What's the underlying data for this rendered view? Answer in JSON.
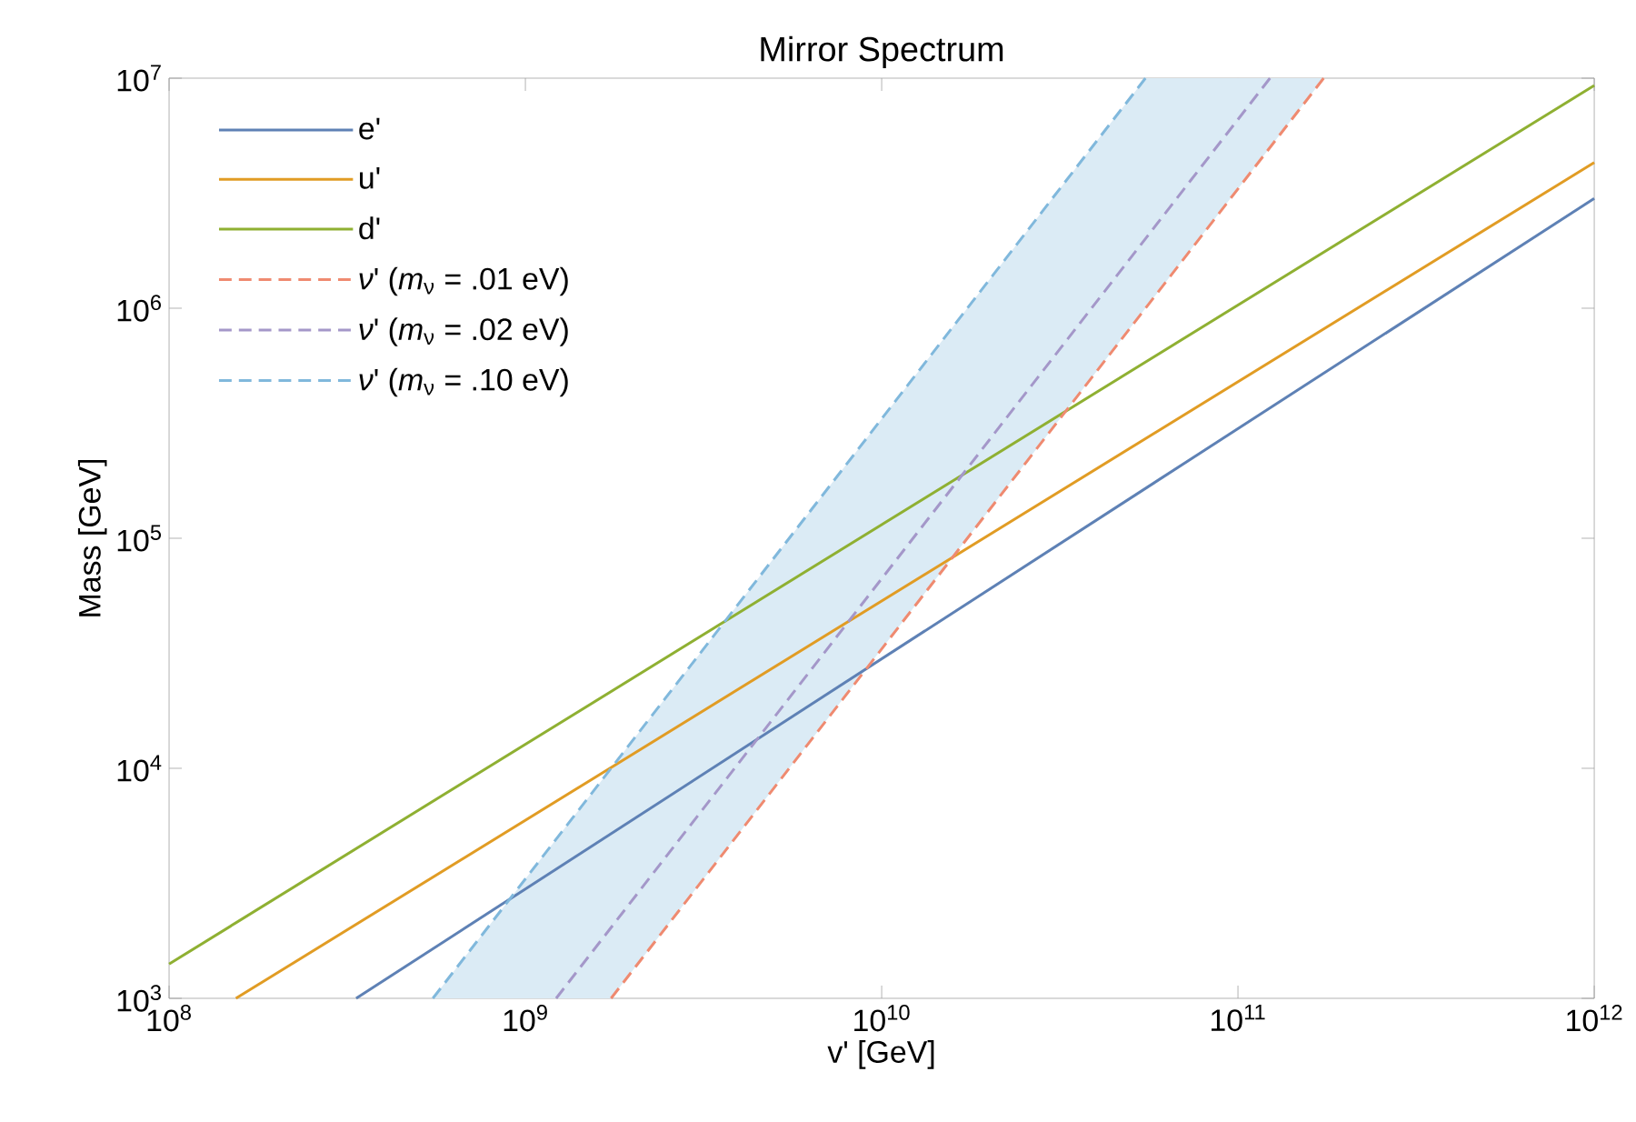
{
  "chart_data": {
    "type": "line",
    "title": "Mirror Spectrum",
    "xlabel": "v' [GeV]",
    "ylabel": "Mass [GeV]",
    "log": "xy",
    "xlim": [
      100000000.0,
      1000000000000.0
    ],
    "ylim": [
      1000,
      10000000.0
    ],
    "xticks": [
      {
        "value": 100000000.0,
        "label": "10$^{8}$"
      },
      {
        "value": 1000000000.0,
        "label": "10$^{9}$"
      },
      {
        "value": 10000000000.0,
        "label": "10$^{10}$"
      },
      {
        "value": 100000000000.0,
        "label": "10$^{11}$"
      },
      {
        "value": 1000000000000.0,
        "label": "10$^{12}$"
      }
    ],
    "yticks": [
      {
        "value": 1000,
        "label": "10$^{3}$"
      },
      {
        "value": 10000,
        "label": "10$^{4}$"
      },
      {
        "value": 100000,
        "label": "10$^{5}$"
      },
      {
        "value": 1000000,
        "label": "10$^{6}$"
      },
      {
        "value": 10000000,
        "label": "10$^{7}$"
      }
    ],
    "legend": "top left",
    "series": [
      {
        "name": "e'",
        "color": "#5e81b5",
        "line_style": "solid",
        "x": [
          335000000.0,
          1000000000000.0
        ],
        "values": [
          1000,
          3000000.0
        ]
      },
      {
        "name": "u'",
        "color": "#e19c24",
        "line_style": "solid",
        "x": [
          154000000.0,
          1000000000000.0
        ],
        "values": [
          1000,
          4300000.0
        ]
      },
      {
        "name": "d'",
        "color": "#8fb032",
        "line_style": "solid",
        "x": [
          100000000.0,
          1000000000000.0
        ],
        "values": [
          1410,
          9300000.0
        ]
      },
      {
        "name": "*ν*' (*m*$_{ν}$ = .01 eV)",
        "color": "#ef8a70",
        "line_style": "dashed",
        "x": [
          1740000000.0,
          174000000000.0
        ],
        "values": [
          1000,
          10000000.0
        ]
      },
      {
        "name": "*ν*' (*m*$_{ν}$ = .02 eV)",
        "color": "#a497c9",
        "line_style": "dashed",
        "x": [
          1220000000.0,
          123000000000.0
        ],
        "values": [
          1000,
          10000000.0
        ]
      },
      {
        "name": "*ν*' (*m*$_{ν}$ = .10 eV)",
        "color": "#80b8dc",
        "line_style": "dashed",
        "x": [
          550000000.0,
          1740000000.0,
          55000000000.0,
          174000000000.0
        ],
        "values": [
          1000,
          10000,
          10000000.0,
          null
        ],
        "lower": [
          1000,
          1000,
          1000000.0,
          10000000.0
        ],
        "upper": [
          1000,
          10000,
          10000000.0,
          10000000.0
        ]
      }
    ]
  }
}
